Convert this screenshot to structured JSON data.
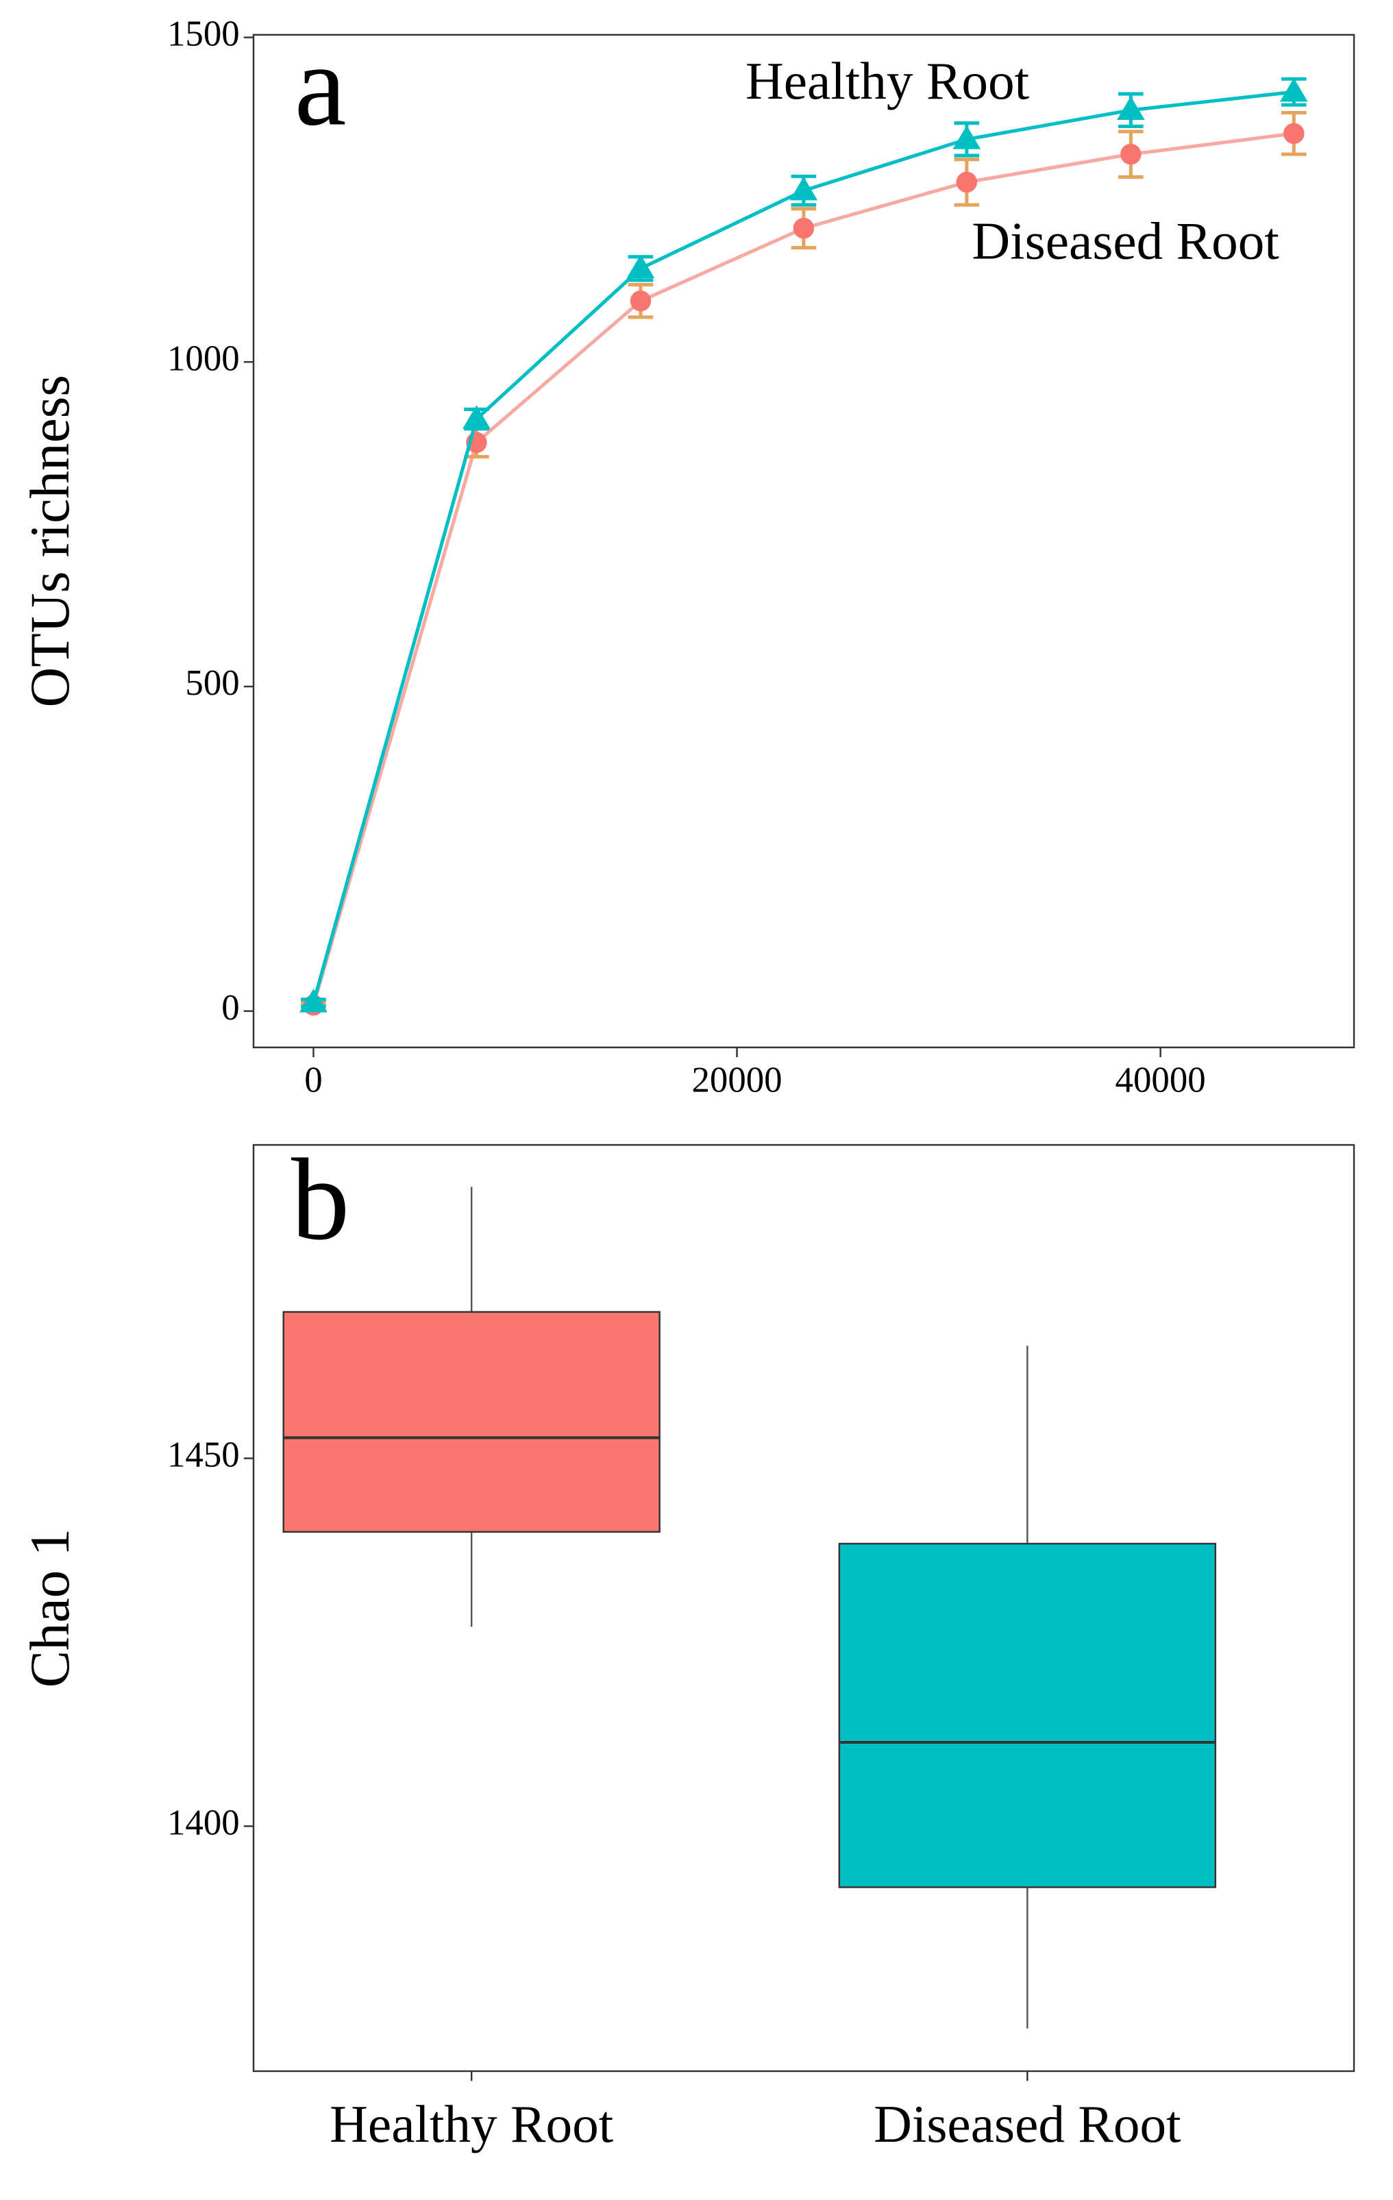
{
  "chart_data": [
    {
      "type": "line",
      "annotation_letter": "a",
      "ylabel": "OTUs richness",
      "x": [
        0,
        7700,
        15450,
        23150,
        30850,
        38600,
        46300
      ],
      "series": [
        {
          "name": "Healthy Root",
          "color": "#00bfc4",
          "line_color": "#00bfc4",
          "error_color": "#00bfc4",
          "marker": "triangle",
          "values": [
            13,
            912,
            1144,
            1264,
            1343,
            1388,
            1416
          ],
          "errors": [
            5,
            15,
            18,
            22,
            25,
            25,
            20
          ]
        },
        {
          "name": "Diseased Root",
          "color": "#f8766d",
          "line_color": "#f7a9a2",
          "error_color": "#e6a35c",
          "marker": "circle",
          "values": [
            9,
            876,
            1094,
            1206,
            1277,
            1320,
            1352
          ],
          "errors": [
            5,
            22,
            25,
            30,
            35,
            35,
            32
          ]
        }
      ],
      "xlim": [
        -2830,
        49140
      ],
      "xticks": [
        0,
        20000,
        40000
      ],
      "ylim": [
        -56,
        1504
      ],
      "yticks": [
        0,
        500,
        1000,
        1500
      ]
    },
    {
      "type": "box",
      "annotation_letter": "b",
      "ylabel": "Chao 1",
      "categories": [
        "Healthy Root",
        "Diseased Root"
      ],
      "colors": [
        "#f8766d",
        "#00bfc4"
      ],
      "boxes": [
        {
          "whislo": 1427.1,
          "q1": 1440,
          "median": 1452.8,
          "q3": 1469.9,
          "whishi": 1486.9
        },
        {
          "whislo": 1372.5,
          "q1": 1391.7,
          "median": 1411.4,
          "q3": 1438.4,
          "whishi": 1465.3
        }
      ],
      "ylim": [
        1366.7,
        1492.6
      ],
      "yticks": [
        1400,
        1450
      ]
    }
  ]
}
